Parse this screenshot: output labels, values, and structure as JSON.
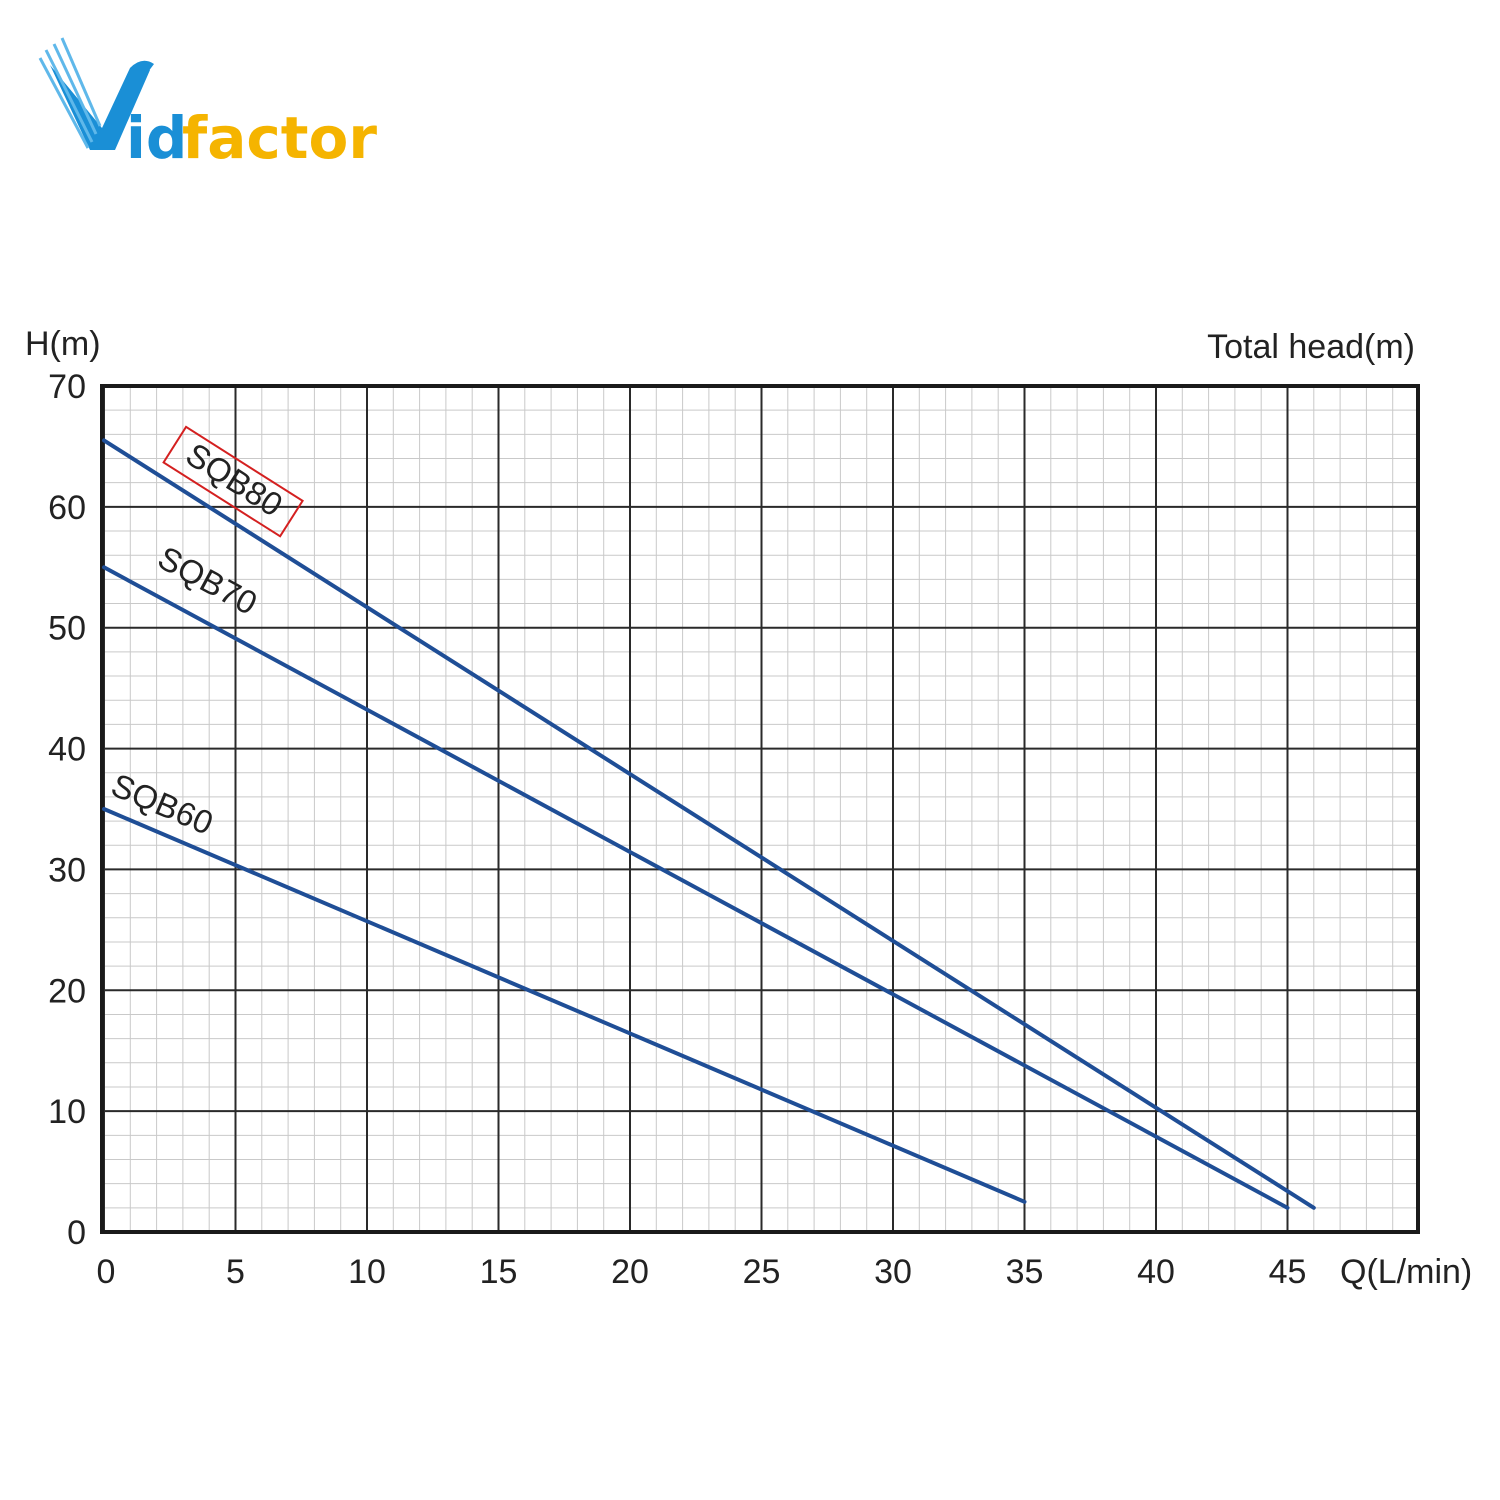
{
  "brand": {
    "name": "vidfactor",
    "colors": {
      "primary": "#1a8fd6",
      "accent": "#f5b400"
    }
  },
  "chart_data": {
    "type": "line",
    "ylabel": "H(m)",
    "ylabel_right": "Total head(m)",
    "xlabel": "Q(L/min)",
    "xlim": [
      0,
      50
    ],
    "ylim": [
      0,
      70
    ],
    "x_ticks": [
      0,
      5,
      10,
      15,
      20,
      25,
      30,
      35,
      40,
      45
    ],
    "y_ticks": [
      0,
      10,
      20,
      30,
      40,
      50,
      60,
      70
    ],
    "grid": true,
    "minor_grid": true,
    "series": [
      {
        "name": "SQB80",
        "color": "#1f4e96",
        "highlighted": true,
        "x": [
          0,
          46
        ],
        "y": [
          65.5,
          2
        ]
      },
      {
        "name": "SQB70",
        "color": "#1f4e96",
        "highlighted": false,
        "x": [
          0,
          45
        ],
        "y": [
          55,
          2
        ]
      },
      {
        "name": "SQB60",
        "color": "#1f4e96",
        "highlighted": false,
        "x": [
          0,
          35
        ],
        "y": [
          35,
          2.5
        ]
      }
    ]
  }
}
